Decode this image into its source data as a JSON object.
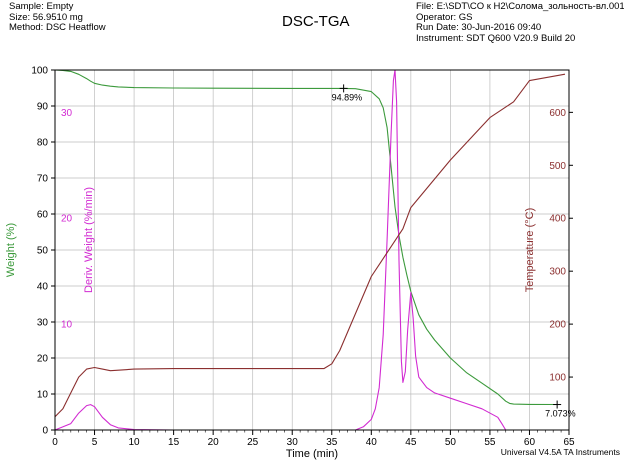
{
  "header": {
    "sample": "Sample: Empty",
    "size": "Size:  56.9510 mg",
    "method": "Method: DSC Heatflow",
    "file": "File: E:\\SDT\\CO к H2\\Солома_зольность-вл.001",
    "operator": "Operator: GS",
    "run_date": "Run Date: 30-Jun-2016 09:40",
    "instrument": "Instrument: SDT Q600 V20.9 Build 20"
  },
  "footer": "Universal V4.5A TA Instruments",
  "colors": {
    "weight": "#3c9a3c",
    "derivative": "#d22bd2",
    "temperature": "#8b2f2f",
    "grid": "#bdbdbd"
  },
  "chart_data": {
    "type": "line",
    "title": "DSC-TGA",
    "xlabel": "Time (min)",
    "ylabel": "Weight (%)",
    "y2label": "Deriv. Weight (%/min)",
    "y3label": "Temperature (°C)",
    "xlim": [
      0,
      65
    ],
    "ylim": [
      0,
      100
    ],
    "y2lim": [
      0,
      34
    ],
    "y3lim": [
      0,
      680
    ],
    "grid": true,
    "x_ticks": [
      0,
      5,
      10,
      15,
      20,
      25,
      30,
      35,
      40,
      45,
      50,
      55,
      60,
      65
    ],
    "y_ticks": [
      0,
      10,
      20,
      30,
      40,
      50,
      60,
      70,
      80,
      90,
      100
    ],
    "y2_ticks": [
      10,
      20,
      30
    ],
    "y3_ticks": [
      100,
      200,
      300,
      400,
      500,
      600
    ],
    "annotations": [
      {
        "x": 36.5,
        "y": 94.89,
        "text": "94.89%",
        "series": "Weight"
      },
      {
        "x": 63.5,
        "y": 7.073,
        "text": "7.073%",
        "series": "Weight"
      }
    ],
    "series": [
      {
        "name": "Weight",
        "axis": "left",
        "x": [
          0,
          1,
          2,
          3,
          4,
          4.5,
          5,
          6,
          7,
          8,
          10,
          15,
          20,
          25,
          30,
          35,
          36.5,
          38,
          40,
          41,
          41.5,
          42,
          42.5,
          43,
          43.5,
          44,
          44.5,
          45,
          46,
          47,
          48,
          50,
          52,
          54,
          56,
          57,
          57.5,
          58,
          60,
          63.5
        ],
        "values": [
          100,
          99.9,
          99.6,
          98.8,
          97.6,
          96.9,
          96.3,
          95.8,
          95.5,
          95.3,
          95.1,
          95.0,
          94.95,
          94.92,
          94.9,
          94.89,
          94.89,
          94.8,
          94.0,
          92.0,
          89.5,
          84.0,
          73.0,
          62.0,
          54.0,
          48.0,
          43.0,
          38.5,
          32.0,
          28.0,
          25.0,
          20.0,
          16.0,
          13.0,
          10.0,
          8.0,
          7.4,
          7.2,
          7.1,
          7.073
        ]
      },
      {
        "name": "Deriv. Weight",
        "axis": "right-inner",
        "x": [
          0,
          2,
          3,
          4,
          4.5,
          5,
          6,
          7,
          8,
          10,
          15,
          30,
          38,
          39,
          40,
          40.5,
          41,
          41.5,
          42,
          42.5,
          42.8,
          43,
          43.2,
          43.5,
          43.8,
          44,
          44.3,
          44.6,
          45,
          45.3,
          45.6,
          46,
          47,
          48,
          50,
          52,
          54,
          56,
          56.5,
          57
        ],
        "values": [
          0,
          0.6,
          1.6,
          2.3,
          2.4,
          2.2,
          1.2,
          0.5,
          0.2,
          0.05,
          0,
          0,
          0,
          0.3,
          1.0,
          2.0,
          4.0,
          9.0,
          18.0,
          28.0,
          33.0,
          34.0,
          31.0,
          16.0,
          6.5,
          4.5,
          5.5,
          9.5,
          13.0,
          10.5,
          7.0,
          5.0,
          4.0,
          3.5,
          3.0,
          2.5,
          2.0,
          1.2,
          0.6,
          0
        ]
      },
      {
        "name": "Temperature",
        "axis": "right-outer",
        "x": [
          0,
          1,
          2,
          3,
          4,
          5,
          6,
          7,
          8,
          10,
          15,
          20,
          25,
          30,
          34,
          35,
          36,
          40,
          44,
          45,
          50,
          55,
          57,
          58,
          60,
          64.5
        ],
        "values": [
          25,
          40,
          70,
          100,
          115,
          118,
          115,
          112,
          113,
          115,
          116,
          116,
          116,
          116,
          116,
          125,
          150,
          290,
          380,
          420,
          510,
          590,
          610,
          620,
          660,
          672
        ]
      }
    ]
  }
}
